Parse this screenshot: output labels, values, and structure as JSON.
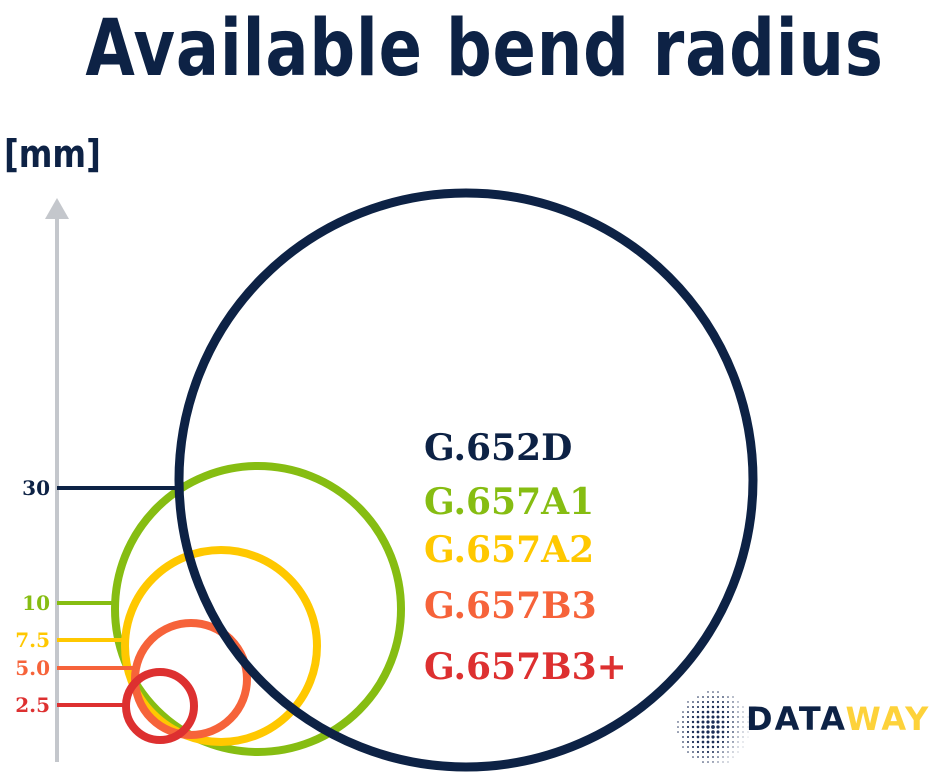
{
  "title": "Available bend radius",
  "unit": "[mm]",
  "colors": {
    "navy": "#0d2245",
    "green": "#86bd12",
    "yellow": "#ffc800",
    "orange": "#f6633a",
    "red": "#dd3030",
    "axis": "#c4c7cc"
  },
  "chart_data": {
    "type": "circles",
    "ylabel": "[mm]",
    "series": [
      {
        "name": "G.652D",
        "radius_mm": 30,
        "tick": "30",
        "color": "#0d2245"
      },
      {
        "name": "G.657A1",
        "radius_mm": 10,
        "tick": "10",
        "color": "#86bd12"
      },
      {
        "name": "G.657A2",
        "radius_mm": 7.5,
        "tick": "7.5",
        "color": "#ffc800"
      },
      {
        "name": "G.657B3",
        "radius_mm": 5.0,
        "tick": "5.0",
        "color": "#f6633a"
      },
      {
        "name": "G.657B3+",
        "radius_mm": 2.5,
        "tick": "2.5",
        "color": "#dd3030"
      }
    ]
  },
  "logo": {
    "part1": "DATA",
    "part2": "WAY",
    "color1": "#0d2245",
    "color2": "#fdd23a"
  }
}
